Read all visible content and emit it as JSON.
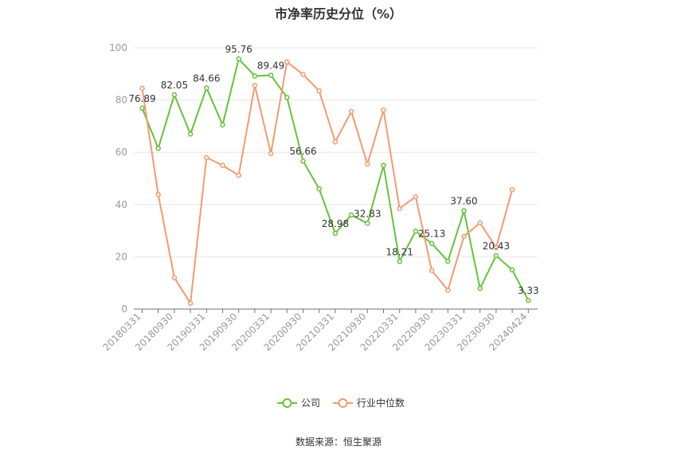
{
  "title": "市净率历史分位（%）",
  "source": "数据来源：恒生聚源",
  "chart_data": {
    "type": "line",
    "title": "市净率历史分位（%）",
    "ylim": [
      0,
      100
    ],
    "yticks": [
      0,
      20,
      40,
      60,
      80,
      100
    ],
    "grid": true,
    "legend_position": "bottom-center",
    "x_ticks_shown": [
      "20180331",
      "20180930",
      "20190331",
      "20190930",
      "20200331",
      "20200930",
      "20210331",
      "20210930",
      "20220331",
      "20220930",
      "20230331",
      "20230930",
      "20240424"
    ],
    "x": [
      "20180331",
      "20180630",
      "20180930",
      "20181231",
      "20190331",
      "20190630",
      "20190930",
      "20191231",
      "20200331",
      "20200630",
      "20200930",
      "20201231",
      "20210331",
      "20210630",
      "20210930",
      "20211231",
      "20220331",
      "20220630",
      "20220930",
      "20221231",
      "20230331",
      "20230630",
      "20230930",
      "20231231",
      "20240424"
    ],
    "series": [
      {
        "name": "公司",
        "color": "#67c23a",
        "values": [
          76.89,
          61.5,
          82.05,
          67.0,
          84.66,
          70.5,
          95.76,
          89.2,
          89.49,
          81.0,
          56.66,
          46.0,
          28.98,
          36.0,
          32.83,
          55.0,
          18.21,
          29.8,
          25.13,
          18.3,
          37.6,
          7.9,
          20.43,
          15.0,
          3.33
        ],
        "labels": {
          "0": "76.89",
          "2": "82.05",
          "4": "84.66",
          "6": "95.76",
          "8": "89.49",
          "10": "56.66",
          "12": "28.98",
          "14": "32.83",
          "16": "18.21",
          "18": "25.13",
          "20": "37.60",
          "22": "20.43",
          "24": "3.33"
        }
      },
      {
        "name": "行业中位数",
        "color": "#f39a72",
        "values": [
          84.5,
          43.8,
          12.0,
          2.2,
          58.0,
          55.0,
          51.2,
          85.6,
          59.5,
          94.6,
          89.8,
          83.5,
          64.0,
          75.6,
          55.5,
          76.2,
          38.5,
          43.0,
          14.8,
          7.2,
          27.8,
          33.0,
          23.5,
          45.7,
          null
        ],
        "labels": {}
      }
    ]
  }
}
